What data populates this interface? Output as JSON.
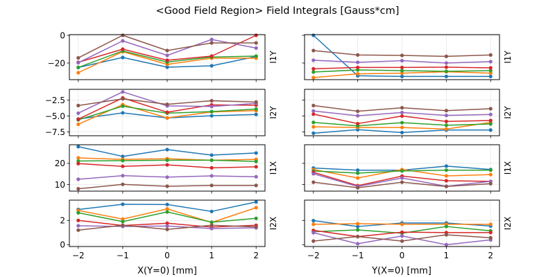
{
  "chart_data": {
    "type": "line",
    "title": "<Good Field Region> Field Integrals [Gauss*cm]",
    "layout": "4 rows x 2 columns, rows share y-axis, columns share x-axis",
    "grid": true,
    "series_colors": [
      "#1f77b4",
      "#ff7f0e",
      "#2ca02c",
      "#d62728",
      "#9467bd",
      "#8c564b"
    ],
    "columns": [
      {
        "xlabel": "X(Y=0) [mm]",
        "x": [
          -2,
          -1,
          0,
          1,
          2
        ],
        "xticks": [
          "−2",
          "−1",
          "0",
          "1",
          "2"
        ],
        "xlim": [
          -2.2,
          2.2
        ]
      },
      {
        "xlabel": "Y(X=0) [mm]",
        "x": [
          -2,
          -1,
          0,
          1,
          2
        ],
        "xticks": [
          "−2",
          "−1",
          "0",
          "1",
          "2"
        ],
        "xlim": [
          -2.2,
          2.2
        ]
      }
    ],
    "rows": [
      {
        "ylabel": "I1Y",
        "ylim": [
          -32,
          0.5
        ],
        "yticks": [
          0,
          -20
        ],
        "ytick_labels": [
          "0",
          "−20"
        ],
        "panels": [
          {
            "series": [
              {
                "values": [
                  -23.2,
                  -16,
                  -23,
                  -22,
                  -15.3
                ]
              },
              {
                "values": [
                  -27,
                  -11.8,
                  -21,
                  -16.5,
                  -16.5
                ]
              },
              {
                "values": [
                  -23.2,
                  -11.3,
                  -19.3,
                  -15.7,
                  -15
                ]
              },
              {
                "values": [
                  -19.5,
                  -10,
                  -18,
                  -15,
                  0
                ]
              },
              {
                "values": [
                  -19.8,
                  -4,
                  -14.5,
                  -3,
                  -9.2
                ]
              },
              {
                "values": [
                  -16.3,
                  0,
                  -11,
                  -5.5,
                  -5.5
                ]
              }
            ]
          },
          {
            "series": [
              {
                "values": [
                  0,
                  -29.2,
                  -29.7,
                  -29.7,
                  -29.7
                ]
              },
              {
                "values": [
                  -30.5,
                  -27.8,
                  -27.3,
                  -26.3,
                  -27.3
                ]
              },
              {
                "values": [
                  -26.5,
                  -25,
                  -25.5,
                  -26,
                  -25.5
                ]
              },
              {
                "values": [
                  -24.2,
                  -23.2,
                  -23.2,
                  -23,
                  -23.5
                ]
              },
              {
                "values": [
                  -18,
                  -19.5,
                  -18.3,
                  -20,
                  -19
                ]
              },
              {
                "values": [
                  -11,
                  -14.2,
                  -14.5,
                  -15.2,
                  -14.2
                ]
              }
            ]
          }
        ]
      },
      {
        "ylabel": "I2Y",
        "ylim": [
          -8.1,
          -0.8
        ],
        "yticks": [
          -2.5,
          -5.0,
          -7.5
        ],
        "ytick_labels": [
          "−2.5",
          "−5.0",
          "−7.5"
        ],
        "panels": [
          {
            "series": [
              {
                "values": [
                  -5.47,
                  -4.5,
                  -5.3,
                  -4.96,
                  -4.75
                ]
              },
              {
                "values": [
                  -6.3,
                  -3.2,
                  -5.3,
                  -4.35,
                  -4.15
                ]
              },
              {
                "values": [
                  -5.6,
                  -3.45,
                  -4.55,
                  -4.3,
                  -3.9
                ]
              },
              {
                "values": [
                  -5.5,
                  -2.15,
                  -4.4,
                  -3.25,
                  -3.3
                ]
              },
              {
                "values": [
                  -4.55,
                  -1.2,
                  -3.4,
                  -3.5,
                  -3.0
                ]
              },
              {
                "values": [
                  -3.35,
                  -2.3,
                  -3.15,
                  -2.6,
                  -2.8
                ]
              }
            ]
          },
          {
            "series": [
              {
                "values": [
                  -7.7,
                  -7.15,
                  -7.6,
                  -7.2,
                  -7.2
                ]
              },
              {
                "values": [
                  -6.7,
                  -6.8,
                  -6.8,
                  -7.05,
                  -6.0
                ]
              },
              {
                "values": [
                  -6.0,
                  -6.55,
                  -6.05,
                  -6.45,
                  -6.25
                ]
              },
              {
                "values": [
                  -4.7,
                  -6.2,
                  -5.0,
                  -5.85,
                  -5.7
                ]
              },
              {
                "values": [
                  -4.2,
                  -4.95,
                  -4.45,
                  -4.9,
                  -4.75
                ]
              },
              {
                "values": [
                  -3.35,
                  -4.25,
                  -3.7,
                  -4.15,
                  -3.85
                ]
              }
            ]
          }
        ]
      },
      {
        "ylabel": "I1X",
        "ylim": [
          6.9,
          28.8
        ],
        "yticks": [
          20,
          10
        ],
        "ytick_labels": [
          "20",
          "10"
        ],
        "panels": [
          {
            "series": [
              {
                "values": [
                  27.9,
                  23.3,
                  26.5,
                  23.9,
                  24.9
                ]
              },
              {
                "values": [
                  22.6,
                  21.9,
                  22.2,
                  21.5,
                  21.9
                ]
              },
              {
                "values": [
                  21.1,
                  21.3,
                  21.5,
                  21.5,
                  20.9
                ]
              },
              {
                "values": [
                  19.9,
                  18.6,
                  19.3,
                  17.9,
                  18.4
                ]
              },
              {
                "values": [
                  12.5,
                  14.2,
                  13.5,
                  14.1,
                  13.7
                ]
              },
              {
                "values": [
                  8.0,
                  10.1,
                  9.2,
                  9.6,
                  9.6
                ]
              }
            ]
          },
          {
            "series": [
              {
                "values": [
                  17.8,
                  16.8,
                  16.8,
                  18.7,
                  17.1
                ]
              },
              {
                "values": [
                  17.1,
                  13.1,
                  17.1,
                  14.1,
                  14.7
                ]
              },
              {
                "values": [
                  16.4,
                  15.4,
                  16.4,
                  16.8,
                  16.8
                ]
              },
              {
                "values": [
                  15.8,
                  9.5,
                  14.0,
                  11.8,
                  11.5
                ]
              },
              {
                "values": [
                  15.1,
                  9.1,
                  13.1,
                  9.2,
                  11.5
                ]
              },
              {
                "values": [
                  11.1,
                  8.5,
                  11.1,
                  9.1,
                  10.4
                ]
              }
            ]
          }
        ]
      },
      {
        "ylabel": "I2X",
        "ylim": [
          -0.15,
          3.67
        ],
        "yticks": [
          2,
          0
        ],
        "ytick_labels": [
          "2",
          "0"
        ],
        "panels": [
          {
            "series": [
              {
                "values": [
                  2.9,
                  3.33,
                  3.31,
                  2.74,
                  3.52
                ]
              },
              {
                "values": [
                  2.82,
                  2.11,
                  2.95,
                  1.83,
                  3.05
                ]
              },
              {
                "values": [
                  2.63,
                  1.9,
                  2.7,
                  1.85,
                  2.17
                ]
              },
              {
                "values": [
                  2.0,
                  1.58,
                  1.77,
                  1.45,
                  1.6
                ]
              },
              {
                "values": [
                  1.56,
                  1.5,
                  1.54,
                  1.33,
                  1.39
                ]
              },
              {
                "values": [
                  1.2,
                  1.6,
                  1.26,
                  1.6,
                  1.47
                ]
              }
            ]
          },
          {
            "series": [
              {
                "values": [
                  1.98,
                  1.5,
                  1.79,
                  1.79,
                  1.54
                ]
              },
              {
                "values": [
                  1.68,
                  1.73,
                  1.68,
                  1.68,
                  1.68
                ]
              },
              {
                "values": [
                  1.07,
                  1.22,
                  0.95,
                  1.5,
                  1.14
                ]
              },
              {
                "values": [
                  1.18,
                  0.67,
                  1.03,
                  1.0,
                  1.0
                ]
              },
              {
                "values": [
                  0.99,
                  0.08,
                  0.72,
                  0.0,
                  0.4
                ]
              },
              {
                "values": [
                  0.3,
                  0.67,
                  0.3,
                  0.82,
                  0.57
                ]
              }
            ]
          }
        ]
      }
    ]
  }
}
